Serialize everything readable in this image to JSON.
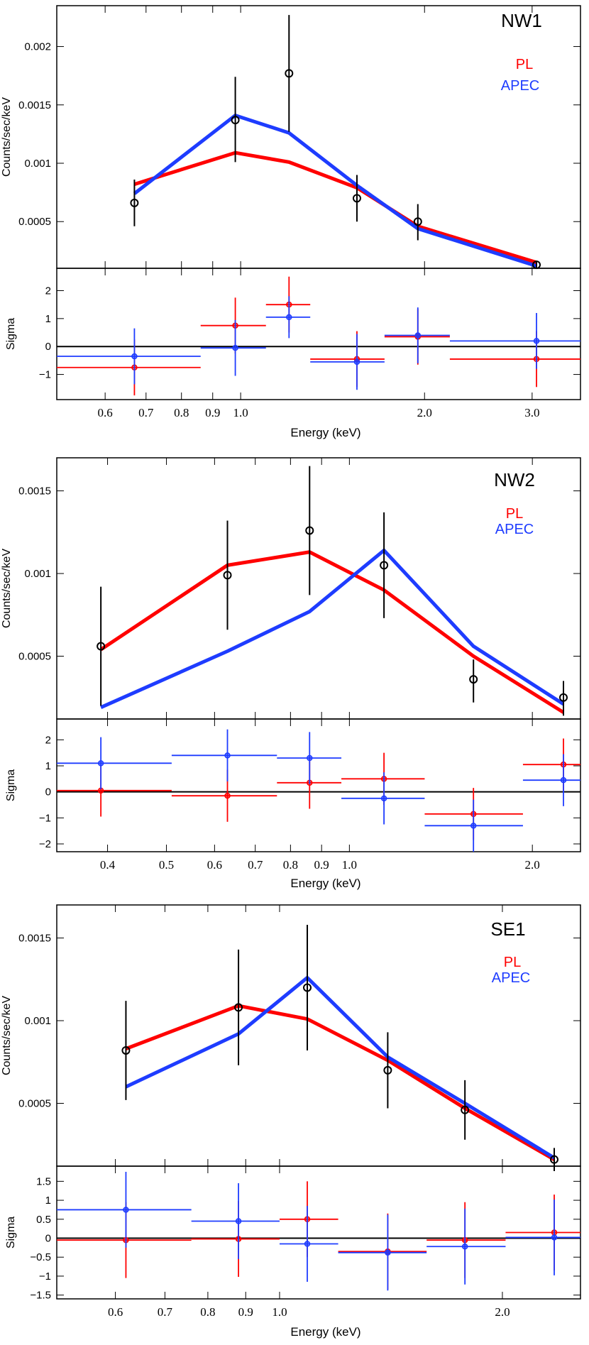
{
  "figure": {
    "colors": {
      "pl": "#ff0000",
      "apec": "#1e3cff",
      "data": "#000000"
    }
  },
  "chart_data": [
    {
      "type": "line",
      "title": "NW1",
      "ylabel": "Counts/sec/keV",
      "residual_ylabel": "Sigma",
      "xlabel": "Energy (keV)",
      "x_scale": "log",
      "xlim": [
        0.5,
        3.6
      ],
      "ylim": [
        0.0001,
        0.00235
      ],
      "residual_ylim": [
        -1.9,
        2.8
      ],
      "yticks": [
        {
          "v": 0.0005,
          "label": "0.0005"
        },
        {
          "v": 0.001,
          "label": "0.001"
        },
        {
          "v": 0.0015,
          "label": "0.0015"
        },
        {
          "v": 0.002,
          "label": "0.002"
        }
      ],
      "residual_yticks": [
        {
          "v": -1,
          "label": "−1"
        },
        {
          "v": 0,
          "label": "0"
        },
        {
          "v": 1,
          "label": "1"
        },
        {
          "v": 2,
          "label": "2"
        }
      ],
      "xticks": [
        {
          "v": 0.6,
          "label": "0.6"
        },
        {
          "v": 0.7,
          "label": "0.7"
        },
        {
          "v": 0.8,
          "label": "0.8"
        },
        {
          "v": 0.9,
          "label": "0.9"
        },
        {
          "v": 1.0,
          "label": "1.0"
        },
        {
          "v": 2.0,
          "label": "2.0"
        },
        {
          "v": 3.0,
          "label": "3.0"
        }
      ],
      "legend": [
        {
          "name": "PL",
          "color": "#ff0000"
        },
        {
          "name": "APEC",
          "color": "#1e3cff"
        }
      ],
      "data_points": [
        {
          "x": 0.67,
          "y": 0.00066,
          "ylo": 0.00046,
          "yhi": 0.00086
        },
        {
          "x": 0.98,
          "y": 0.00137,
          "ylo": 0.00101,
          "yhi": 0.00174
        },
        {
          "x": 1.2,
          "y": 0.00177,
          "ylo": 0.00127,
          "yhi": 0.00227
        },
        {
          "x": 1.55,
          "y": 0.0007,
          "ylo": 0.0005,
          "yhi": 0.0009
        },
        {
          "x": 1.95,
          "y": 0.0005,
          "ylo": 0.00034,
          "yhi": 0.00065
        },
        {
          "x": 3.05,
          "y": 0.00013,
          "ylo": 0.0001,
          "yhi": 0.00016
        }
      ],
      "series": [
        {
          "name": "PL",
          "color": "#ff0000",
          "x": [
            0.67,
            0.98,
            1.2,
            1.55,
            1.95,
            3.05
          ],
          "y": [
            0.00082,
            0.00109,
            0.00101,
            0.00079,
            0.00046,
            0.00015
          ]
        },
        {
          "name": "APEC",
          "color": "#1e3cff",
          "x": [
            0.67,
            0.98,
            1.2,
            1.55,
            1.95,
            3.05
          ],
          "y": [
            0.00074,
            0.00141,
            0.00126,
            0.00081,
            0.00044,
            0.00012
          ]
        }
      ],
      "residuals": [
        {
          "name": "PL",
          "color": "#ff0000",
          "points": [
            {
              "x": 0.67,
              "xlo": 0.5,
              "xhi": 0.86,
              "y": -0.75,
              "yerr": 1.0
            },
            {
              "x": 0.98,
              "xlo": 0.86,
              "xhi": 1.1,
              "y": 0.75,
              "yerr": 1.0
            },
            {
              "x": 1.2,
              "xlo": 1.1,
              "xhi": 1.3,
              "y": 1.5,
              "yerr": 1.0
            },
            {
              "x": 1.55,
              "xlo": 1.3,
              "xhi": 1.72,
              "y": -0.45,
              "yerr": 1.0
            },
            {
              "x": 1.95,
              "xlo": 1.72,
              "xhi": 2.2,
              "y": 0.35,
              "yerr": 1.0
            },
            {
              "x": 3.05,
              "xlo": 2.2,
              "xhi": 3.6,
              "y": -0.45,
              "yerr": 1.0
            }
          ]
        },
        {
          "name": "APEC",
          "color": "#1e3cff",
          "points": [
            {
              "x": 0.67,
              "xlo": 0.5,
              "xhi": 0.86,
              "y": -0.35,
              "yerr": 1.0
            },
            {
              "x": 0.98,
              "xlo": 0.86,
              "xhi": 1.1,
              "y": -0.05,
              "yerr": 1.0
            },
            {
              "x": 1.2,
              "xlo": 1.1,
              "xhi": 1.3,
              "y": 1.05,
              "yerr": 0.75
            },
            {
              "x": 1.55,
              "xlo": 1.3,
              "xhi": 1.72,
              "y": -0.55,
              "yerr": 1.0
            },
            {
              "x": 1.95,
              "xlo": 1.72,
              "xhi": 2.2,
              "y": 0.4,
              "yerr": 1.0
            },
            {
              "x": 3.05,
              "xlo": 2.2,
              "xhi": 3.6,
              "y": 0.2,
              "yerr": 1.0
            }
          ]
        }
      ]
    },
    {
      "type": "line",
      "title": "NW2",
      "ylabel": "Counts/sec/keV",
      "residual_ylabel": "Sigma",
      "xlabel": "Energy (keV)",
      "x_scale": "log",
      "xlim": [
        0.33,
        2.4
      ],
      "ylim": [
        0.00012,
        0.0017
      ],
      "residual_ylim": [
        -2.3,
        2.8
      ],
      "yticks": [
        {
          "v": 0.0005,
          "label": "0.0005"
        },
        {
          "v": 0.001,
          "label": "0.001"
        },
        {
          "v": 0.0015,
          "label": "0.0015"
        }
      ],
      "residual_yticks": [
        {
          "v": -2,
          "label": "−2"
        },
        {
          "v": -1,
          "label": "−1"
        },
        {
          "v": 0,
          "label": "0"
        },
        {
          "v": 1,
          "label": "1"
        },
        {
          "v": 2,
          "label": "2"
        }
      ],
      "xticks": [
        {
          "v": 0.4,
          "label": "0.4"
        },
        {
          "v": 0.5,
          "label": "0.5"
        },
        {
          "v": 0.6,
          "label": "0.6"
        },
        {
          "v": 0.7,
          "label": "0.7"
        },
        {
          "v": 0.8,
          "label": "0.8"
        },
        {
          "v": 0.9,
          "label": "0.9"
        },
        {
          "v": 1.0,
          "label": "1.0"
        },
        {
          "v": 2.0,
          "label": "2.0"
        }
      ],
      "legend": [
        {
          "name": "PL",
          "color": "#ff0000"
        },
        {
          "name": "APEC",
          "color": "#1e3cff"
        }
      ],
      "data_points": [
        {
          "x": 0.39,
          "y": 0.00056,
          "ylo": 0.0002,
          "yhi": 0.00092
        },
        {
          "x": 0.63,
          "y": 0.00099,
          "ylo": 0.00066,
          "yhi": 0.00132
        },
        {
          "x": 0.86,
          "y": 0.00126,
          "ylo": 0.00087,
          "yhi": 0.00165
        },
        {
          "x": 1.14,
          "y": 0.00105,
          "ylo": 0.00073,
          "yhi": 0.00137
        },
        {
          "x": 1.6,
          "y": 0.00036,
          "ylo": 0.00022,
          "yhi": 0.00048
        },
        {
          "x": 2.25,
          "y": 0.00025,
          "ylo": 0.00014,
          "yhi": 0.00035
        }
      ],
      "series": [
        {
          "name": "PL",
          "color": "#ff0000",
          "x": [
            0.39,
            0.63,
            0.86,
            1.14,
            1.6,
            2.25
          ],
          "y": [
            0.00054,
            0.00105,
            0.00113,
            0.0009,
            0.0005,
            0.00016
          ]
        },
        {
          "name": "APEC",
          "color": "#1e3cff",
          "x": [
            0.39,
            0.63,
            0.86,
            1.14,
            1.6,
            2.25
          ],
          "y": [
            0.00019,
            0.00053,
            0.00077,
            0.00114,
            0.00056,
            0.00021
          ]
        }
      ],
      "residuals": [
        {
          "name": "PL",
          "color": "#ff0000",
          "points": [
            {
              "x": 0.39,
              "xlo": 0.33,
              "xhi": 0.51,
              "y": 0.05,
              "yerr": 1.0
            },
            {
              "x": 0.63,
              "xlo": 0.51,
              "xhi": 0.76,
              "y": -0.15,
              "yerr": 1.0
            },
            {
              "x": 0.86,
              "xlo": 0.76,
              "xhi": 0.97,
              "y": 0.35,
              "yerr": 1.0
            },
            {
              "x": 1.14,
              "xlo": 0.97,
              "xhi": 1.33,
              "y": 0.5,
              "yerr": 1.0
            },
            {
              "x": 1.6,
              "xlo": 1.33,
              "xhi": 1.93,
              "y": -0.85,
              "yerr": 1.0
            },
            {
              "x": 2.25,
              "xlo": 1.93,
              "xhi": 2.4,
              "y": 1.05,
              "yerr": 1.0
            }
          ]
        },
        {
          "name": "APEC",
          "color": "#1e3cff",
          "points": [
            {
              "x": 0.39,
              "xlo": 0.33,
              "xhi": 0.51,
              "y": 1.1,
              "yerr": 1.0
            },
            {
              "x": 0.63,
              "xlo": 0.51,
              "xhi": 0.76,
              "y": 1.4,
              "yerr": 1.0
            },
            {
              "x": 0.86,
              "xlo": 0.76,
              "xhi": 0.97,
              "y": 1.3,
              "yerr": 1.0
            },
            {
              "x": 1.14,
              "xlo": 0.97,
              "xhi": 1.33,
              "y": -0.25,
              "yerr": 1.0
            },
            {
              "x": 1.6,
              "xlo": 1.33,
              "xhi": 1.93,
              "y": -1.3,
              "yerr": 1.0
            },
            {
              "x": 2.25,
              "xlo": 1.93,
              "xhi": 2.4,
              "y": 0.45,
              "yerr": 1.0
            }
          ]
        }
      ]
    },
    {
      "type": "line",
      "title": "SE1",
      "ylabel": "Counts/sec/keV",
      "residual_ylabel": "Sigma",
      "xlabel": "Energy (keV)",
      "x_scale": "log",
      "xlim": [
        0.5,
        2.55
      ],
      "ylim": [
        0.00012,
        0.0017
      ],
      "residual_ylim": [
        -1.6,
        1.9
      ],
      "yticks": [
        {
          "v": 0.0005,
          "label": "0.0005"
        },
        {
          "v": 0.001,
          "label": "0.001"
        },
        {
          "v": 0.0015,
          "label": "0.0015"
        }
      ],
      "residual_yticks": [
        {
          "v": -1.5,
          "label": "−1.5"
        },
        {
          "v": -1,
          "label": "−1"
        },
        {
          "v": -0.5,
          "label": "−0.5"
        },
        {
          "v": 0,
          "label": "0"
        },
        {
          "v": 0.5,
          "label": "0.5"
        },
        {
          "v": 1,
          "label": "1"
        },
        {
          "v": 1.5,
          "label": "1.5"
        }
      ],
      "xticks": [
        {
          "v": 0.6,
          "label": "0.6"
        },
        {
          "v": 0.7,
          "label": "0.7"
        },
        {
          "v": 0.8,
          "label": "0.8"
        },
        {
          "v": 0.9,
          "label": "0.9"
        },
        {
          "v": 1.0,
          "label": "1.0"
        },
        {
          "v": 2.0,
          "label": "2.0"
        }
      ],
      "legend": [
        {
          "name": "PL",
          "color": "#ff0000"
        },
        {
          "name": "APEC",
          "color": "#1e3cff"
        }
      ],
      "data_points": [
        {
          "x": 0.62,
          "y": 0.00082,
          "ylo": 0.00052,
          "yhi": 0.00112
        },
        {
          "x": 0.88,
          "y": 0.00108,
          "ylo": 0.00073,
          "yhi": 0.00143
        },
        {
          "x": 1.09,
          "y": 0.0012,
          "ylo": 0.00082,
          "yhi": 0.00158
        },
        {
          "x": 1.4,
          "y": 0.0007,
          "ylo": 0.00047,
          "yhi": 0.00093
        },
        {
          "x": 1.78,
          "y": 0.00046,
          "ylo": 0.00028,
          "yhi": 0.00064
        },
        {
          "x": 2.35,
          "y": 0.00016,
          "ylo": 9e-05,
          "yhi": 0.00023
        }
      ],
      "series": [
        {
          "name": "PL",
          "color": "#ff0000",
          "x": [
            0.62,
            0.88,
            1.09,
            1.4,
            1.78,
            2.35
          ],
          "y": [
            0.00083,
            0.00109,
            0.00101,
            0.00076,
            0.00047,
            0.00016
          ]
        },
        {
          "name": "APEC",
          "color": "#1e3cff",
          "x": [
            0.62,
            0.88,
            1.09,
            1.4,
            1.78,
            2.35
          ],
          "y": [
            0.0006,
            0.00092,
            0.00126,
            0.00078,
            0.0005,
            0.00017
          ]
        }
      ],
      "residuals": [
        {
          "name": "PL",
          "color": "#ff0000",
          "points": [
            {
              "x": 0.62,
              "xlo": 0.5,
              "xhi": 0.76,
              "y": -0.05,
              "yerr": 1.0
            },
            {
              "x": 0.88,
              "xlo": 0.76,
              "xhi": 1.0,
              "y": -0.02,
              "yerr": 1.0
            },
            {
              "x": 1.09,
              "xlo": 1.0,
              "xhi": 1.2,
              "y": 0.5,
              "yerr": 1.0
            },
            {
              "x": 1.4,
              "xlo": 1.2,
              "xhi": 1.58,
              "y": -0.35,
              "yerr": 1.0
            },
            {
              "x": 1.78,
              "xlo": 1.58,
              "xhi": 2.02,
              "y": -0.05,
              "yerr": 1.0
            },
            {
              "x": 2.35,
              "xlo": 2.02,
              "xhi": 2.55,
              "y": 0.15,
              "yerr": 1.0
            }
          ]
        },
        {
          "name": "APEC",
          "color": "#1e3cff",
          "points": [
            {
              "x": 0.62,
              "xlo": 0.5,
              "xhi": 0.76,
              "y": 0.75,
              "yerr": 1.0
            },
            {
              "x": 0.88,
              "xlo": 0.76,
              "xhi": 1.0,
              "y": 0.45,
              "yerr": 1.0
            },
            {
              "x": 1.09,
              "xlo": 1.0,
              "xhi": 1.2,
              "y": -0.15,
              "yerr": 1.0
            },
            {
              "x": 1.4,
              "xlo": 1.2,
              "xhi": 1.58,
              "y": -0.38,
              "yerr": 1.0
            },
            {
              "x": 1.78,
              "xlo": 1.58,
              "xhi": 2.02,
              "y": -0.22,
              "yerr": 1.0
            },
            {
              "x": 2.35,
              "xlo": 2.02,
              "xhi": 2.55,
              "y": 0.02,
              "yerr": 1.0
            }
          ]
        }
      ]
    }
  ]
}
